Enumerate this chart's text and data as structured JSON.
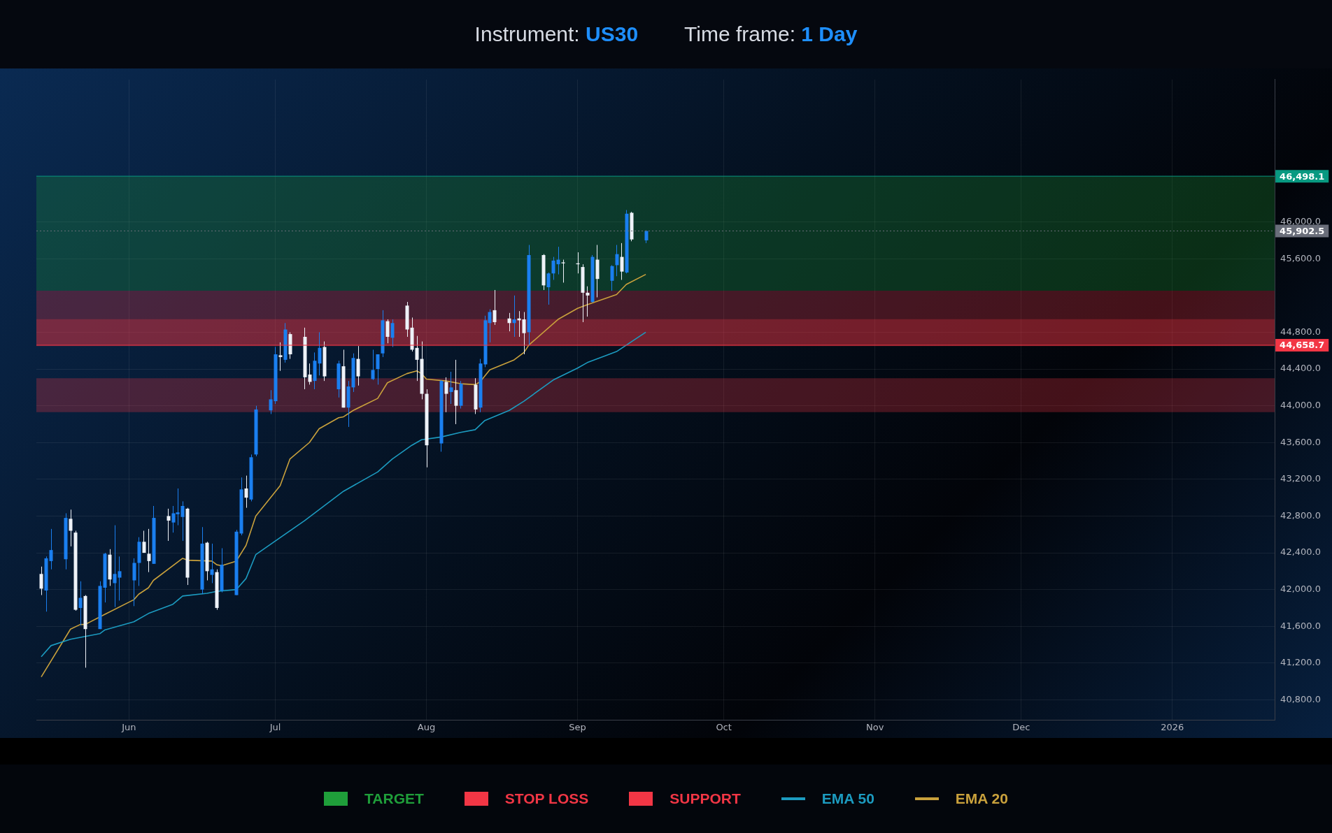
{
  "chart_data": {
    "type": "candlestick",
    "title": "Instrument: US30",
    "subtitle": "Time frame: 1 Day",
    "x": [
      "2025-05-14",
      "2025-05-15",
      "2025-05-16",
      "2025-05-19",
      "2025-05-20",
      "2025-05-21",
      "2025-05-22",
      "2025-05-23",
      "2025-05-26",
      "2025-05-27",
      "2025-05-28",
      "2025-05-29",
      "2025-05-30",
      "2025-06-02",
      "2025-06-03",
      "2025-06-04",
      "2025-06-05",
      "2025-06-06",
      "2025-06-09",
      "2025-06-10",
      "2025-06-11",
      "2025-06-12",
      "2025-06-13",
      "2025-06-16",
      "2025-06-17",
      "2025-06-18",
      "2025-06-19",
      "2025-06-20",
      "2025-06-23",
      "2025-06-24",
      "2025-06-25",
      "2025-06-26",
      "2025-06-27",
      "2025-06-30",
      "2025-07-01",
      "2025-07-02",
      "2025-07-03",
      "2025-07-04",
      "2025-07-07",
      "2025-07-08",
      "2025-07-09",
      "2025-07-10",
      "2025-07-11",
      "2025-07-14",
      "2025-07-15",
      "2025-07-16",
      "2025-07-17",
      "2025-07-18",
      "2025-07-21",
      "2025-07-22",
      "2025-07-23",
      "2025-07-24",
      "2025-07-25",
      "2025-07-28",
      "2025-07-29",
      "2025-07-30",
      "2025-07-31",
      "2025-08-01",
      "2025-08-04",
      "2025-08-05",
      "2025-08-06",
      "2025-08-07",
      "2025-08-08",
      "2025-08-11",
      "2025-08-12",
      "2025-08-13",
      "2025-08-14",
      "2025-08-15",
      "2025-08-18",
      "2025-08-19",
      "2025-08-20",
      "2025-08-21",
      "2025-08-22",
      "2025-08-25",
      "2025-08-26",
      "2025-08-27",
      "2025-08-28",
      "2025-08-29",
      "2025-09-01",
      "2025-09-02",
      "2025-09-03",
      "2025-09-04",
      "2025-09-05",
      "2025-09-08",
      "2025-09-09",
      "2025-09-10",
      "2025-09-11",
      "2025-09-12",
      "2025-09-15"
    ],
    "ohlc": [
      [
        42170,
        42250,
        41940,
        42010
      ],
      [
        41990,
        42360,
        41760,
        42340
      ],
      [
        42310,
        42660,
        42220,
        42430
      ],
      [
        42330,
        42830,
        42220,
        42780
      ],
      [
        42770,
        42870,
        42470,
        42640
      ],
      [
        42620,
        42640,
        41770,
        41780
      ],
      [
        41800,
        42090,
        41610,
        41910
      ],
      [
        41930,
        41940,
        41150,
        41570
      ],
      [
        41570,
        42090,
        41570,
        42040
      ],
      [
        42020,
        42400,
        41860,
        42390
      ],
      [
        42380,
        42440,
        42040,
        42110
      ],
      [
        42070,
        42700,
        41810,
        42170
      ],
      [
        42130,
        42360,
        41880,
        42200
      ],
      [
        42100,
        42340,
        41820,
        42290
      ],
      [
        42290,
        42570,
        42040,
        42520
      ],
      [
        42520,
        42640,
        42400,
        42400
      ],
      [
        42390,
        42660,
        42190,
        42310
      ],
      [
        42280,
        42910,
        42280,
        42780
      ],
      [
        42800,
        42880,
        42530,
        42750
      ],
      [
        42730,
        42910,
        42620,
        42830
      ],
      [
        42820,
        43100,
        42700,
        42840
      ],
      [
        42790,
        42960,
        42530,
        42910
      ],
      [
        42880,
        42890,
        42050,
        42130
      ],
      [
        42000,
        42680,
        41950,
        42500
      ],
      [
        42510,
        42520,
        42100,
        42200
      ],
      [
        42160,
        42500,
        42070,
        42220
      ],
      [
        42190,
        42220,
        41780,
        41800
      ],
      [
        41990,
        42450,
        41970,
        42270
      ],
      [
        41940,
        42650,
        41940,
        42630
      ],
      [
        42610,
        43220,
        42590,
        43090
      ],
      [
        43100,
        43240,
        42890,
        43000
      ],
      [
        42980,
        43470,
        42960,
        43440
      ],
      [
        43470,
        44000,
        43450,
        43960
      ],
      [
        43950,
        44170,
        43910,
        44070
      ],
      [
        44050,
        44640,
        44020,
        44560
      ],
      [
        44550,
        44690,
        44380,
        44530
      ],
      [
        44500,
        44900,
        44470,
        44830
      ],
      [
        44780,
        44800,
        44510,
        44560
      ],
      [
        44750,
        44850,
        44180,
        44310
      ],
      [
        44340,
        44460,
        44230,
        44260
      ],
      [
        44270,
        44580,
        44180,
        44490
      ],
      [
        44460,
        44800,
        44330,
        44630
      ],
      [
        44640,
        44700,
        44270,
        44320
      ],
      [
        44180,
        44490,
        44090,
        44460
      ],
      [
        44430,
        44610,
        43980,
        43980
      ],
      [
        43980,
        44270,
        43770,
        44210
      ],
      [
        44200,
        44570,
        44150,
        44520
      ],
      [
        44510,
        44650,
        44220,
        44320
      ],
      [
        44290,
        44610,
        44280,
        44390
      ],
      [
        44400,
        44560,
        44230,
        44560
      ],
      [
        44570,
        45040,
        44530,
        44930
      ],
      [
        44920,
        44940,
        44680,
        44750
      ],
      [
        44740,
        44940,
        44640,
        44900
      ],
      [
        45090,
        45130,
        44750,
        44830
      ],
      [
        44850,
        44960,
        44590,
        44610
      ],
      [
        44630,
        44760,
        44270,
        44500
      ],
      [
        44510,
        44700,
        44070,
        44130
      ],
      [
        44130,
        44180,
        43330,
        43570
      ],
      [
        43590,
        44280,
        43500,
        44270
      ],
      [
        44260,
        44310,
        43930,
        44130
      ],
      [
        44150,
        44370,
        44020,
        44200
      ],
      [
        44170,
        44500,
        43800,
        44000
      ],
      [
        44000,
        44270,
        43970,
        44240
      ],
      [
        44230,
        44300,
        43910,
        43960
      ],
      [
        43980,
        44510,
        43930,
        44460
      ],
      [
        44450,
        44980,
        44420,
        44930
      ],
      [
        44900,
        45050,
        44690,
        45020
      ],
      [
        45040,
        45260,
        44880,
        44910
      ],
      [
        44950,
        45010,
        44810,
        44900
      ],
      [
        44900,
        45200,
        44750,
        44940
      ],
      [
        44950,
        45030,
        44750,
        44930
      ],
      [
        44940,
        45020,
        44560,
        44790
      ],
      [
        44800,
        45750,
        44660,
        45640
      ],
      [
        45640,
        45650,
        45260,
        45310
      ],
      [
        45290,
        45450,
        45100,
        45440
      ],
      [
        45440,
        45620,
        45370,
        45580
      ],
      [
        45540,
        45730,
        45430,
        45590
      ],
      [
        45560,
        45590,
        45340,
        45550
      ],
      [
        45550,
        45670,
        45440,
        45540
      ],
      [
        45510,
        45540,
        44910,
        45230
      ],
      [
        45230,
        45300,
        44970,
        45200
      ],
      [
        45130,
        45640,
        45120,
        45620
      ],
      [
        45590,
        45750,
        45180,
        45380
      ],
      [
        45360,
        45530,
        45250,
        45520
      ],
      [
        45530,
        45750,
        45410,
        45650
      ],
      [
        45620,
        45770,
        45370,
        45460
      ],
      [
        45450,
        46130,
        45440,
        46090
      ],
      [
        46100,
        46110,
        45790,
        45810
      ],
      [
        45800,
        45910,
        45770,
        45902.5
      ]
    ],
    "colors": [
      "#eef2f8",
      "#1a7ff0",
      "#1a7ff0",
      "#1a7ff0",
      "#eef2f8",
      "#eef2f8",
      "#1a7ff0",
      "#eef2f8",
      "#1a7ff0",
      "#1a7ff0",
      "#eef2f8",
      "#1a7ff0",
      "#1a7ff0",
      "#1a7ff0",
      "#1a7ff0",
      "#eef2f8",
      "#eef2f8",
      "#1a7ff0",
      "#eef2f8",
      "#1a7ff0",
      "#1a7ff0",
      "#1a7ff0",
      "#eef2f8",
      "#1a7ff0",
      "#eef2f8",
      "#1a7ff0",
      "#eef2f8",
      "#1a7ff0",
      "#1a7ff0",
      "#1a7ff0",
      "#eef2f8",
      "#1a7ff0",
      "#1a7ff0",
      "#1a7ff0",
      "#1a7ff0",
      "#eef2f8",
      "#1a7ff0",
      "#eef2f8",
      "#eef2f8",
      "#eef2f8",
      "#1a7ff0",
      "#1a7ff0",
      "#eef2f8",
      "#1a7ff0",
      "#eef2f8",
      "#1a7ff0",
      "#1a7ff0",
      "#eef2f8",
      "#1a7ff0",
      "#1a7ff0",
      "#1a7ff0",
      "#eef2f8",
      "#1a7ff0",
      "#eef2f8",
      "#eef2f8",
      "#eef2f8",
      "#eef2f8",
      "#eef2f8",
      "#1a7ff0",
      "#eef2f8",
      "#1a7ff0",
      "#eef2f8",
      "#1a7ff0",
      "#eef2f8",
      "#1a7ff0",
      "#1a7ff0",
      "#1a7ff0",
      "#eef2f8",
      "#eef2f8",
      "#1a7ff0",
      "#eef2f8",
      "#eef2f8",
      "#1a7ff0",
      "#eef2f8",
      "#1a7ff0",
      "#1a7ff0",
      "#1a7ff0",
      "#eef2f8",
      "#eef2f8",
      "#eef2f8",
      "#eef2f8",
      "#1a7ff0",
      "#eef2f8",
      "#1a7ff0",
      "#1a7ff0",
      "#eef2f8",
      "#1a7ff0",
      "#eef2f8",
      "#1a7ff0"
    ],
    "series": [
      {
        "name": "EMA 50",
        "type": "line",
        "color": "#1c9bc0",
        "x": [
          "2025-05-14",
          "2025-05-16",
          "2025-05-20",
          "2025-05-26",
          "2025-05-27",
          "2025-06-02",
          "2025-06-05",
          "2025-06-10",
          "2025-06-12",
          "2025-06-17",
          "2025-06-19",
          "2025-06-23",
          "2025-06-25",
          "2025-06-27",
          "2025-07-07",
          "2025-07-15",
          "2025-07-22",
          "2025-07-25",
          "2025-07-29",
          "2025-07-31",
          "2025-08-04",
          "2025-08-08",
          "2025-08-11",
          "2025-08-13",
          "2025-08-18",
          "2025-08-21",
          "2025-08-27",
          "2025-09-01",
          "2025-09-03",
          "2025-09-09",
          "2025-09-15"
        ],
        "values": [
          41270,
          41390,
          41460,
          41520,
          41560,
          41650,
          41740,
          41840,
          41930,
          41960,
          41980,
          42000,
          42120,
          42380,
          42750,
          43070,
          43280,
          43420,
          43570,
          43630,
          43660,
          43710,
          43740,
          43840,
          43950,
          44050,
          44280,
          44410,
          44470,
          44590,
          44800
        ]
      },
      {
        "name": "EMA 20",
        "type": "line",
        "color": "#c9a13c",
        "x": [
          "2025-05-14",
          "2025-05-20",
          "2025-05-22",
          "2025-05-23",
          "2025-05-27",
          "2025-06-02",
          "2025-06-03",
          "2025-06-05",
          "2025-06-06",
          "2025-06-12",
          "2025-06-13",
          "2025-06-18",
          "2025-06-19",
          "2025-06-20",
          "2025-06-23",
          "2025-06-25",
          "2025-06-27",
          "2025-07-02",
          "2025-07-04",
          "2025-07-08",
          "2025-07-10",
          "2025-07-14",
          "2025-07-15",
          "2025-07-17",
          "2025-07-22",
          "2025-07-24",
          "2025-07-28",
          "2025-07-30",
          "2025-07-31",
          "2025-08-01",
          "2025-08-05",
          "2025-08-08",
          "2025-08-11",
          "2025-08-12",
          "2025-08-14",
          "2025-08-19",
          "2025-08-21",
          "2025-08-22",
          "2025-08-28",
          "2025-09-01",
          "2025-09-03",
          "2025-09-09",
          "2025-09-11",
          "2025-09-15"
        ],
        "values": [
          41050,
          41570,
          41620,
          41620,
          41730,
          41890,
          41950,
          42020,
          42100,
          42340,
          42320,
          42310,
          42270,
          42260,
          42310,
          42480,
          42800,
          43130,
          43420,
          43600,
          43750,
          43870,
          43880,
          43950,
          44080,
          44250,
          44350,
          44380,
          44350,
          44290,
          44270,
          44240,
          44230,
          44260,
          44390,
          44500,
          44580,
          44660,
          44940,
          45060,
          45100,
          45210,
          45320,
          45430
        ]
      }
    ],
    "bands": [
      {
        "axis": "y",
        "from": 45252,
        "to": 46498.1,
        "label": "TARGET",
        "color": "#1f9e3a"
      },
      {
        "axis": "y",
        "from": 44658.7,
        "to": 45252,
        "label": "STOP LOSS",
        "color": "#f23645"
      },
      {
        "axis": "y",
        "from": 44650,
        "to": 44943,
        "label": "SUPPORT",
        "color": "#f23645"
      },
      {
        "axis": "y",
        "from": 43930,
        "to": 44300,
        "color": "#f23645"
      }
    ],
    "ref_lines": [
      {
        "axis": "y",
        "value": 45902.5,
        "label": "45,902.5",
        "color": "#6a6e7a",
        "line_style": "dotted"
      },
      {
        "axis": "y",
        "value": 46498.1,
        "label": "46,498.1",
        "color": "#089981",
        "line_style": "solid"
      },
      {
        "axis": "y",
        "value": 44658.7,
        "label": "44,658.7",
        "color": "#f23645",
        "line_style": "solid"
      }
    ],
    "xlim": [
      "2025-05-13",
      "2026-01-22"
    ],
    "xticks": [
      {
        "value": "2025-06-01",
        "label": "Jun"
      },
      {
        "value": "2025-07-01",
        "label": "Jul"
      },
      {
        "value": "2025-08-01",
        "label": "Aug"
      },
      {
        "value": "2025-09-01",
        "label": "Sep"
      },
      {
        "value": "2025-10-01",
        "label": "Oct"
      },
      {
        "value": "2025-11-01",
        "label": "Nov"
      },
      {
        "value": "2025-12-01",
        "label": "Dec"
      },
      {
        "value": "2026-01-01",
        "label": "2026"
      }
    ],
    "ylim": [
      40580,
      47550
    ],
    "yticks": [
      {
        "value": 40800,
        "label": "40,800.0"
      },
      {
        "value": 41200,
        "label": "41,200.0"
      },
      {
        "value": 41600,
        "label": "41,600.0"
      },
      {
        "value": 42000,
        "label": "42,000.0"
      },
      {
        "value": 42400,
        "label": "42,400.0"
      },
      {
        "value": 42800,
        "label": "42,800.0"
      },
      {
        "value": 43200,
        "label": "43,200.0"
      },
      {
        "value": 43600,
        "label": "43,600.0"
      },
      {
        "value": 44000,
        "label": "44,000.0"
      },
      {
        "value": 44400,
        "label": "44,400.0"
      },
      {
        "value": 44800,
        "label": "44,800.0"
      },
      {
        "value": 45600,
        "label": "45,600.0"
      },
      {
        "value": 46000,
        "label": "46,000.0"
      }
    ],
    "grid": true,
    "legend": "bottom"
  }
}
